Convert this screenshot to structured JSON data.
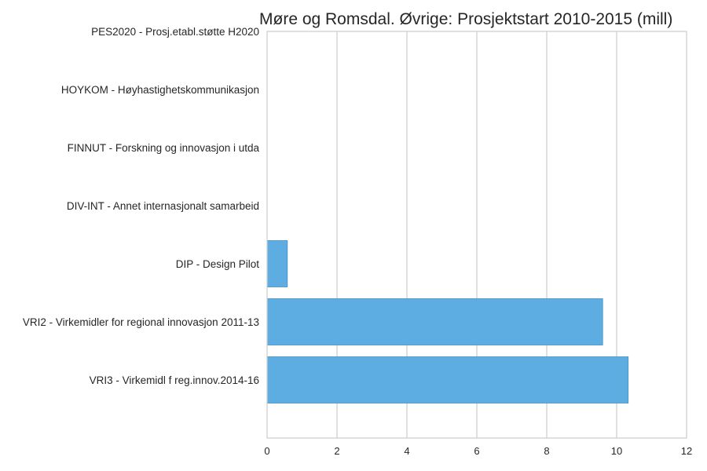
{
  "chart_data": {
    "type": "bar",
    "orientation": "horizontal",
    "title": "Møre og Romsdal. Øvrige: Prosjektstart 2010-2015 (mill)",
    "xlabel": "",
    "ylabel": "",
    "categories": [
      "PES2020 - Prosj.etabl.støtte H2020",
      "HOYKOM - Høyhastighetskommunikasjon",
      "FINNUT - Forskning og innovasjon i utda",
      "DIV-INT - Annet internasjonalt samarbeid",
      "DIP - Design Pilot",
      "VRI2 - Virkemidler for regional innovasjon 2011-13",
      "VRI3 - Virkemidl f reg.innov.2014-16"
    ],
    "values": [
      0.0,
      0.0,
      0.0,
      0.0,
      0.58,
      9.6,
      10.33
    ],
    "xlim": [
      0,
      12
    ],
    "xticks": [
      0,
      2,
      4,
      6,
      8,
      10,
      12
    ],
    "grid": true,
    "bar_color": "#5dade2",
    "bar_edge_color": "#4a8fbf",
    "grid_color": "#cccccc"
  }
}
